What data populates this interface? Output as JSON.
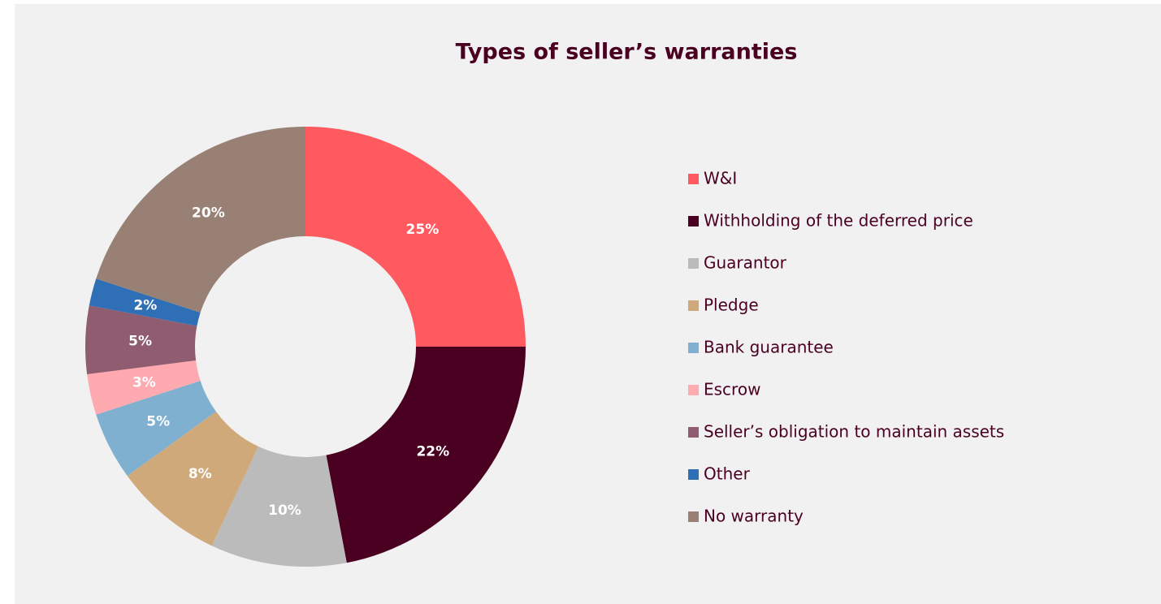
{
  "chart_data": {
    "type": "donut",
    "title": "Types of seller’s warranties",
    "categories": [
      "W&I",
      "Withholding of the deferred price",
      "Guarantor",
      "Pledge",
      "Bank guarantee",
      "Escrow",
      "Seller’s obligation to maintain assets",
      "Other",
      "No warranty"
    ],
    "values": [
      25,
      22,
      10,
      8,
      5,
      3,
      5,
      2,
      20
    ],
    "value_labels": [
      "25%",
      "22%",
      "10%",
      "8%",
      "5%",
      "3%",
      "5%",
      "2%",
      "20%"
    ],
    "colors": [
      "#ff5a60",
      "#4a0020",
      "#bbbbbb",
      "#d0a97a",
      "#7fb0d0",
      "#ffaab0",
      "#8f5c70",
      "#2f6fb5",
      "#998075"
    ],
    "legend": "right"
  }
}
